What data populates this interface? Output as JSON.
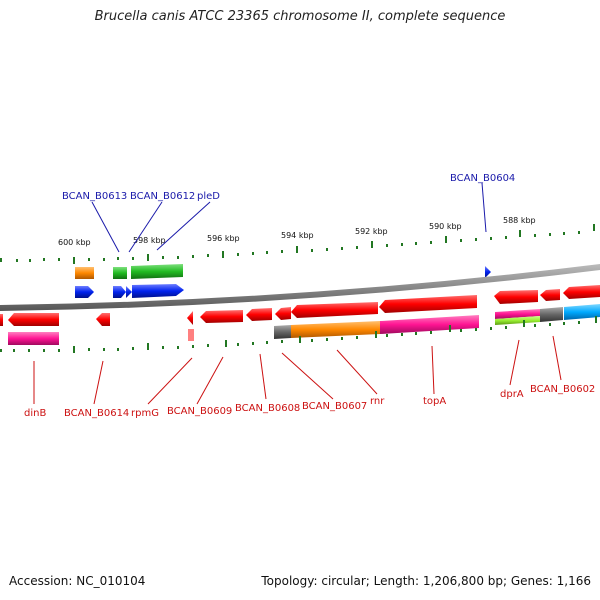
{
  "title": "Brucella canis ATCC 23365 chromosome II, complete sequence",
  "footer": {
    "accession": "Accession: NC_010104",
    "summary": "Topology: circular; Length: 1,206,800 bp; Genes: 1,166"
  },
  "scale": {
    "labels": [
      "600 kbp",
      "598 kbp",
      "596 kbp",
      "594 kbp",
      "592 kbp",
      "590 kbp",
      "588 kbp"
    ]
  },
  "gene_labels": {
    "top": [
      "BCAN_B0613",
      "BCAN_B0612",
      "pleD",
      "BCAN_B0604"
    ],
    "bottom": [
      "dinB",
      "BCAN_B0614",
      "rpmG",
      "BCAN_B0609",
      "BCAN_B0608",
      "BCAN_B0607",
      "rnr",
      "topA",
      "dprA",
      "BCAN_B0602"
    ]
  },
  "colors": {
    "top_label": "#1a1aaa",
    "bottom_label": "#cc1111",
    "gene_forward": "#ff0000",
    "cog_blue": "#0022ee",
    "cog_green": "#22bb22",
    "cog_orange": "#ff8800",
    "cog_pink": "#ff1493",
    "cog_gray": "#666666",
    "cog_cyan": "#00aaff",
    "cog_lime": "#99ee33",
    "tick": "#227722",
    "backbone": "#888888"
  }
}
